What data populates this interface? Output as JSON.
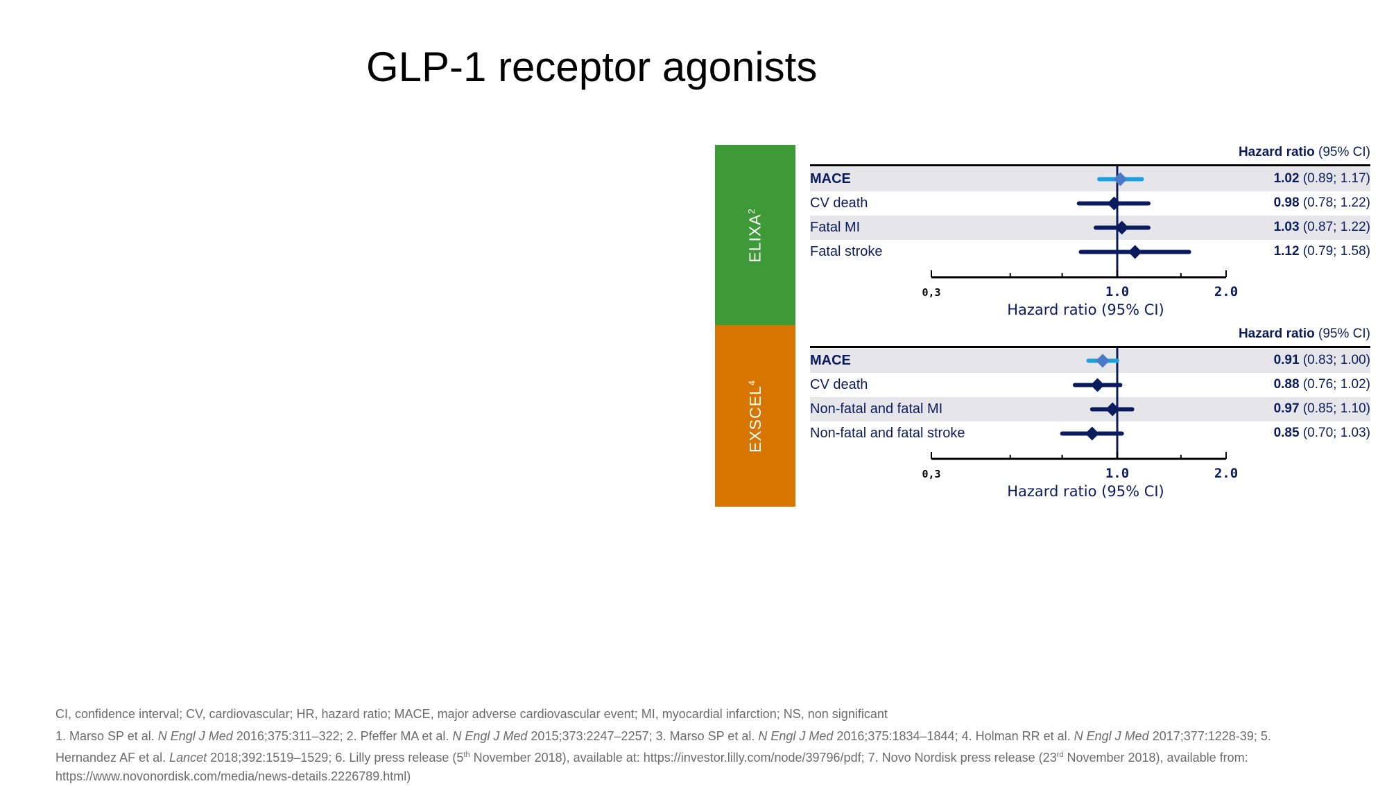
{
  "title": "GLP-1 receptor agonists",
  "colors": {
    "navy": "#0b1c5e",
    "light_blue": "#1ea0dc",
    "diamond_light": "#4a7ac7",
    "elixa_green": "#3d9a36",
    "exscel_orange": "#d67600",
    "shade": "#e6e6ea"
  },
  "chart_data": [
    {
      "type": "forest",
      "trial": "ELIXA",
      "trial_sup": "2",
      "header_bold": "Hazard ratio",
      "header_rest": " (95% CI)",
      "xlabel": "Hazard ratio (95% CI)",
      "x_scale": "log",
      "ticks": [
        {
          "label": "0,3",
          "value": 0.3
        },
        {
          "label": "1.0",
          "value": 1.0
        },
        {
          "label": "2.0",
          "value": 2.0
        }
      ],
      "rows": [
        {
          "label": "MACE",
          "bold": true,
          "hr": 1.02,
          "lo": 0.89,
          "hi": 1.17,
          "hr_text": "1.02",
          "ci_text": " (0.89; 1.17)"
        },
        {
          "label": "CV death",
          "bold": false,
          "hr": 0.98,
          "lo": 0.78,
          "hi": 1.22,
          "hr_text": "0.98",
          "ci_text": " (0.78; 1.22)"
        },
        {
          "label": "Fatal MI",
          "bold": false,
          "hr": 1.03,
          "lo": 0.87,
          "hi": 1.22,
          "hr_text": "1.03",
          "ci_text": " (0.87; 1.22)"
        },
        {
          "label": "Fatal stroke",
          "bold": false,
          "hr": 1.12,
          "lo": 0.79,
          "hi": 1.58,
          "hr_text": "1.12",
          "ci_text": " (0.79; 1.58)"
        }
      ]
    },
    {
      "type": "forest",
      "trial": "EXSCEL",
      "trial_sup": "4",
      "header_bold": "Hazard ratio",
      "header_rest": " (95% CI)",
      "xlabel": "Hazard ratio (95% CI)",
      "x_scale": "log",
      "ticks": [
        {
          "label": "0,3",
          "value": 0.3
        },
        {
          "label": "1.0",
          "value": 1.0
        },
        {
          "label": "2.0",
          "value": 2.0
        }
      ],
      "rows": [
        {
          "label": "MACE",
          "bold": true,
          "hr": 0.91,
          "lo": 0.83,
          "hi": 1.0,
          "hr_text": "0.91",
          "ci_text": " (0.83; 1.00)"
        },
        {
          "label": "CV death",
          "bold": false,
          "hr": 0.88,
          "lo": 0.76,
          "hi": 1.02,
          "hr_text": "0.88",
          "ci_text": " (0.76; 1.02)"
        },
        {
          "label": "Non-fatal and fatal MI",
          "bold": false,
          "hr": 0.97,
          "lo": 0.85,
          "hi": 1.1,
          "hr_text": "0.97",
          "ci_text": " (0.85; 1.10)"
        },
        {
          "label": "Non-fatal and fatal stroke",
          "bold": false,
          "hr": 0.85,
          "lo": 0.7,
          "hi": 1.03,
          "hr_text": "0.85",
          "ci_text": " (0.70; 1.03)"
        }
      ]
    }
  ],
  "footnotes": {
    "abbreviations": "CI, confidence interval; CV, cardiovascular; HR, hazard ratio; MACE, major adverse cardiovascular event; MI, myocardial infarction; NS, non significant",
    "ref_1": "1. Marso SP et al. ",
    "ref_1_journal": "N Engl J Med",
    "ref_1_cite": " 2016;375:311–322; 2. Pfeffer MA et al. ",
    "ref_2_journal": "N Engl J Med",
    "ref_2_cite": " 2015;373:2247–2257; 3. Marso SP et al. ",
    "ref_3_journal": "N Engl J Med",
    "ref_3_cite": " 2016;375:1834–1844; 4. Holman RR et al. ",
    "ref_4_journal": "N Engl J Med",
    "ref_4_cite": " 2017;377:1228-39; 5. Hernandez AF et al. ",
    "ref_5_journal": "Lancet",
    "ref_5_cite": " 2018;392:1519–1529; 6. Lilly press release (5",
    "ref_6_sup": "th",
    "ref_6_cite": " November 2018), available at: https://investor.lilly.com/node/39796/pdf; 7. Novo Nordisk press release (23",
    "ref_7_sup": "rd",
    "ref_7_cite": " November 2018), available from: https://www.novonordisk.com/media/news-details.2226789.html)"
  }
}
